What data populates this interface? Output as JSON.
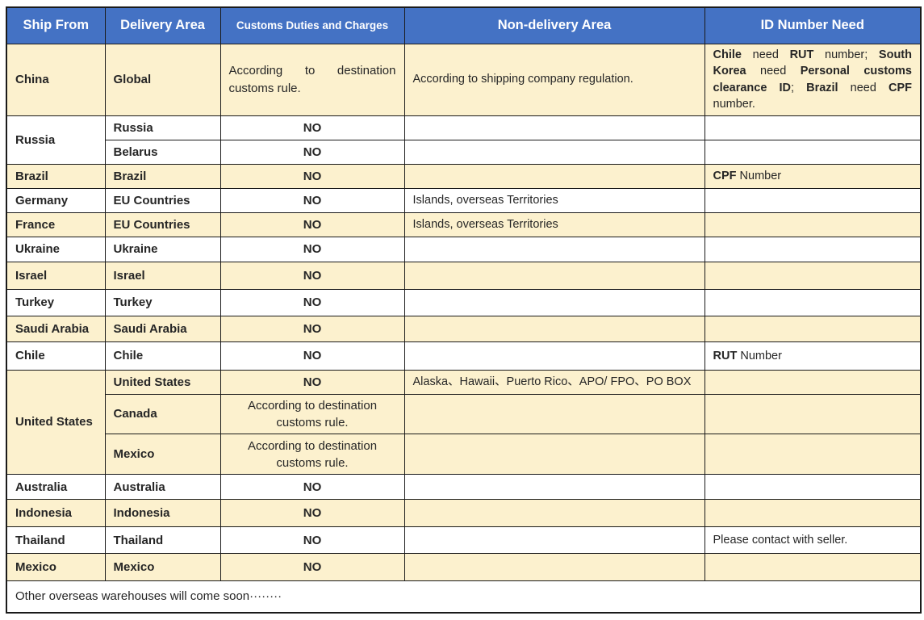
{
  "header": {
    "ship_from": "Ship From",
    "delivery_area": "Delivery Area",
    "customs": "Customs Duties and Charges",
    "non_delivery": "Non-delivery Area",
    "id_need": "ID Number Need"
  },
  "colors": {
    "header_bg": "#4472C4",
    "header_text": "#FFFFFF",
    "row_highlight": "#FCF1CE",
    "row_plain": "#FFFFFF",
    "border": "#1a1a1a",
    "text": "#262626"
  },
  "rows": {
    "china": {
      "ship": "China",
      "area": "Global",
      "customs": "According to destination customs rule.",
      "non_delivery": "According to shipping company regulation.",
      "id_segments": [
        {
          "text": "Chile",
          "bold": true
        },
        {
          "text": " need ",
          "bold": false
        },
        {
          "text": "RUT",
          "bold": true
        },
        {
          "text": " number; ",
          "bold": false
        },
        {
          "text": "South Korea",
          "bold": true
        },
        {
          "text": " need ",
          "bold": false
        },
        {
          "text": "Personal customs clearance ID",
          "bold": true
        },
        {
          "text": "; ",
          "bold": false
        },
        {
          "text": "Brazil",
          "bold": true
        },
        {
          "text": " need ",
          "bold": false
        },
        {
          "text": "CPF",
          "bold": true
        },
        {
          "text": " number.",
          "bold": false
        }
      ]
    },
    "russia": {
      "ship": "Russia",
      "sub": [
        {
          "area": "Russia",
          "customs": "NO"
        },
        {
          "area": "Belarus",
          "customs": "NO"
        }
      ]
    },
    "brazil": {
      "ship": "Brazil",
      "area": "Brazil",
      "customs": "NO",
      "id_segments": [
        {
          "text": "CPF",
          "bold": true
        },
        {
          "text": " Number",
          "bold": false
        }
      ]
    },
    "germany": {
      "ship": "Germany",
      "area": "EU Countries",
      "customs": "NO",
      "non_delivery": "Islands, overseas Territories"
    },
    "france": {
      "ship": "France",
      "area": "EU Countries",
      "customs": "NO",
      "non_delivery": "Islands, overseas Territories"
    },
    "ukraine": {
      "ship": "Ukraine",
      "area": "Ukraine",
      "customs": "NO"
    },
    "israel": {
      "ship": "Israel",
      "area": "Israel",
      "customs": "NO"
    },
    "turkey": {
      "ship": "Turkey",
      "area": "Turkey",
      "customs": "NO"
    },
    "saudi_arabia": {
      "ship": "Saudi Arabia",
      "area": "Saudi Arabia",
      "customs": "NO"
    },
    "chile": {
      "ship": "Chile",
      "area": "Chile",
      "customs": "NO",
      "id_segments": [
        {
          "text": "RUT",
          "bold": true
        },
        {
          "text": " Number",
          "bold": false
        }
      ]
    },
    "united_states": {
      "ship": "United States",
      "sub": [
        {
          "area": "United States",
          "customs": "NO",
          "non_delivery": "Alaska、Hawaii、Puerto Rico、APO/ FPO、PO BOX"
        },
        {
          "area": "Canada",
          "customs": "According to destination customs rule."
        },
        {
          "area": "Mexico",
          "customs": "According to destination customs rule."
        }
      ]
    },
    "australia": {
      "ship": "Australia",
      "area": "Australia",
      "customs": "NO"
    },
    "indonesia": {
      "ship": "Indonesia",
      "area": "Indonesia",
      "customs": "NO"
    },
    "thailand": {
      "ship": "Thailand",
      "area": "Thailand",
      "customs": "NO",
      "id": "Please contact with seller."
    },
    "mexico": {
      "ship": "Mexico",
      "area": "Mexico",
      "customs": "NO"
    }
  },
  "footer": {
    "note": "Other overseas warehouses will come soon········"
  }
}
